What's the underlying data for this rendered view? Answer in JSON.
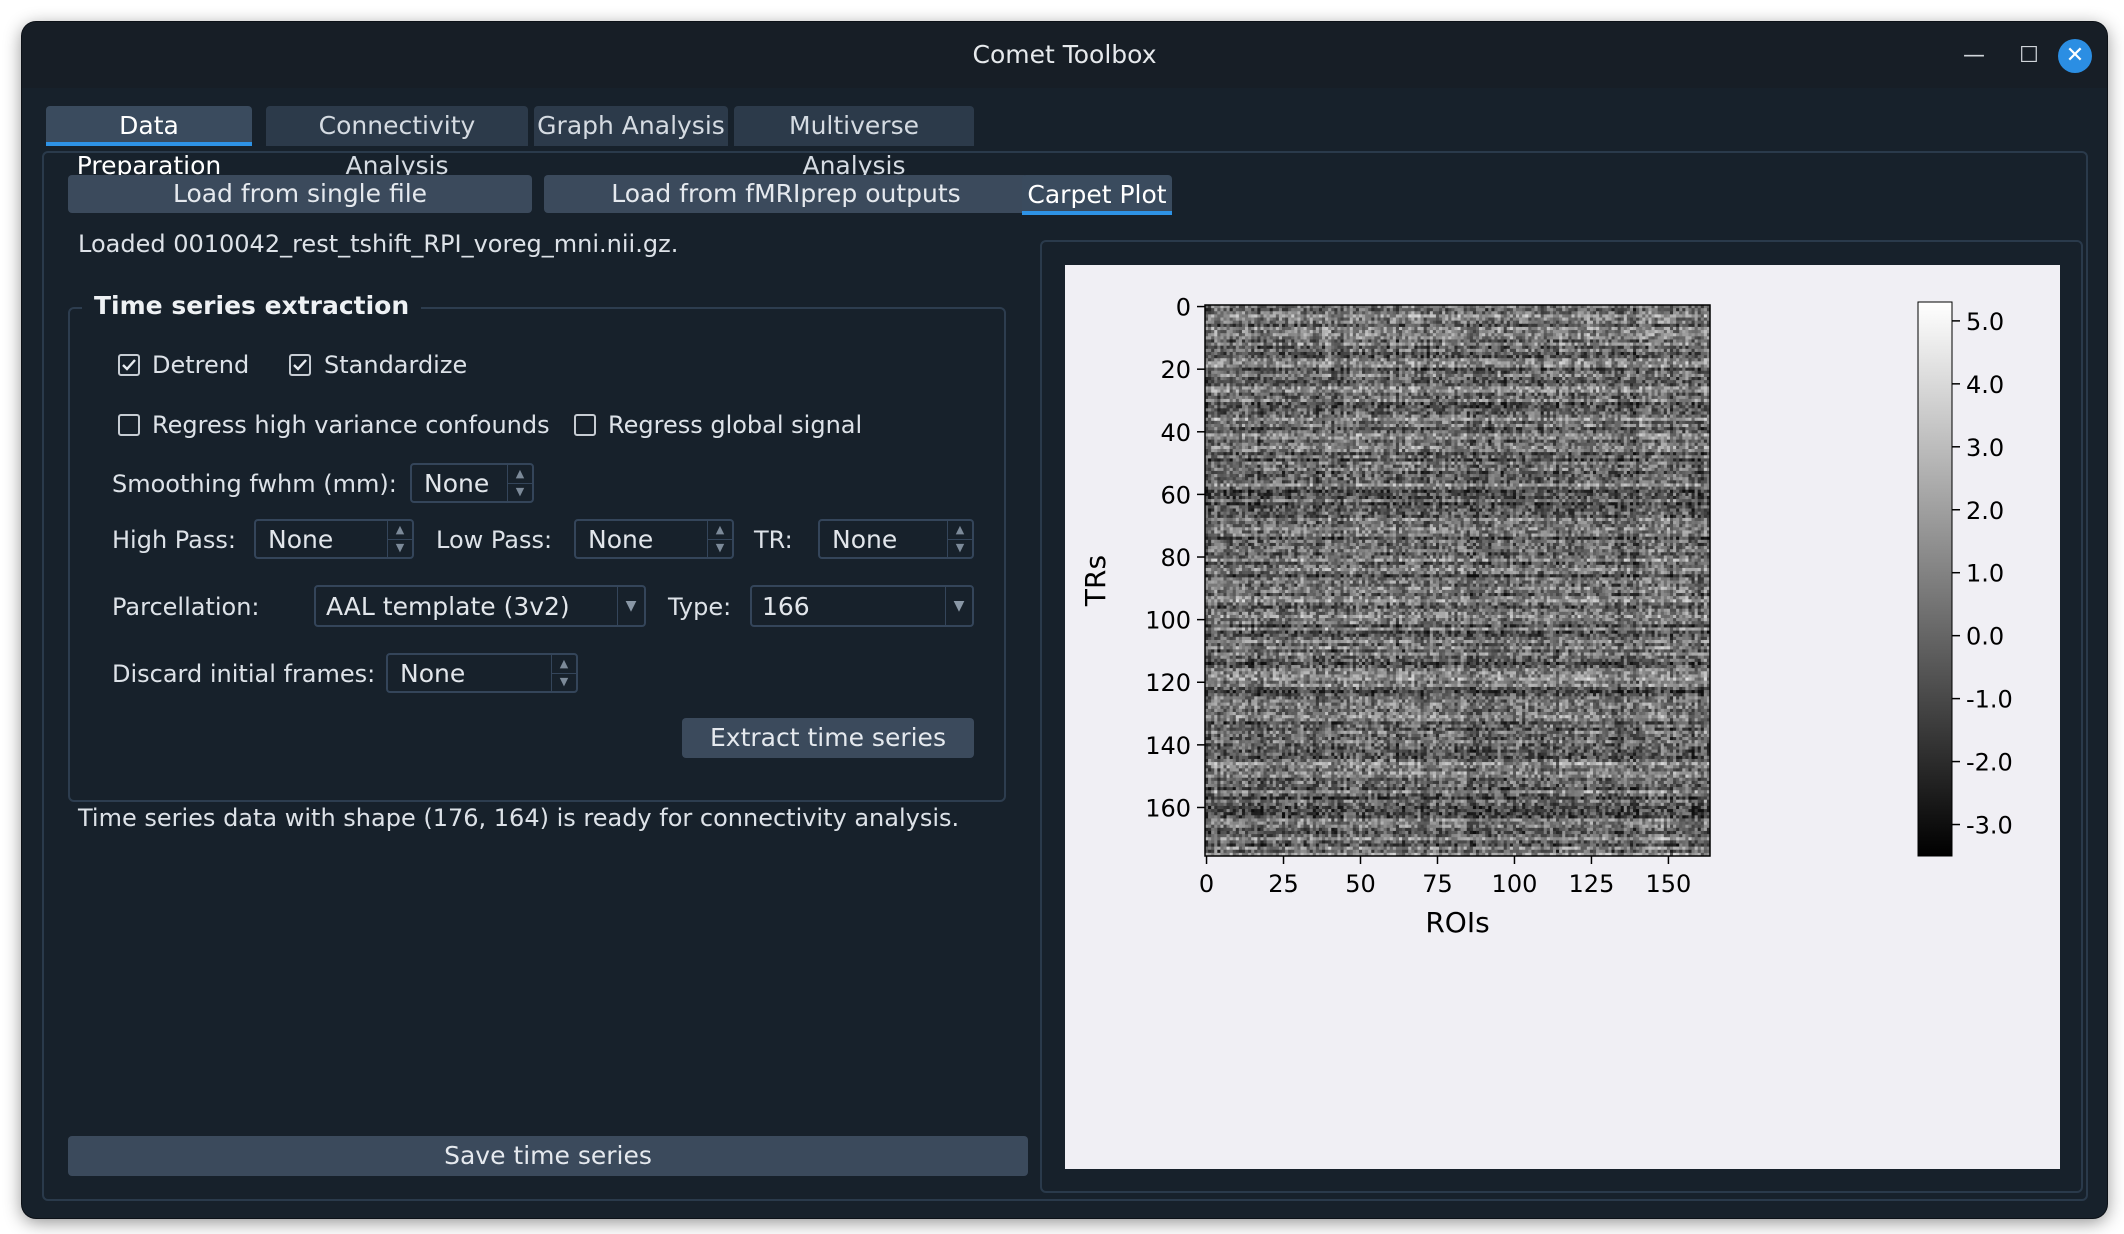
{
  "window": {
    "title": "Comet Toolbox",
    "controls": {
      "minimize": "—",
      "maximize": "☐",
      "close": "✕"
    }
  },
  "tabs": [
    {
      "label": "Data Preparation",
      "active": true
    },
    {
      "label": "Connectivity Analysis",
      "active": false
    },
    {
      "label": "Graph Analysis",
      "active": false
    },
    {
      "label": "Multiverse Analysis",
      "active": false
    }
  ],
  "data_prep": {
    "load_single_label": "Load from single file",
    "load_fmriprep_label": "Load from fMRIprep outputs",
    "loaded_file_text": "Loaded 0010042_rest_tshift_RPI_voreg_mni.nii.gz.",
    "group_title": "Time series extraction",
    "detrend": {
      "label": "Detrend",
      "checked": true
    },
    "standardize": {
      "label": "Standardize",
      "checked": true
    },
    "regress_confounds": {
      "label": "Regress high variance confounds",
      "checked": false
    },
    "regress_global": {
      "label": "Regress global signal",
      "checked": false
    },
    "smoothing": {
      "label": "Smoothing fwhm (mm):",
      "value": "None"
    },
    "high_pass": {
      "label": "High Pass:",
      "value": "None"
    },
    "low_pass": {
      "label": "Low Pass:",
      "value": "None"
    },
    "tr": {
      "label": "TR:",
      "value": "None"
    },
    "parcellation": {
      "label": "Parcellation:",
      "value": "AAL template (3v2)"
    },
    "type": {
      "label": "Type:",
      "value": "166"
    },
    "discard": {
      "label": "Discard initial frames:",
      "value": "None"
    },
    "extract_label": "Extract time series",
    "status_text": "Time series data with shape (176, 164) is ready for connectivity analysis.",
    "save_label": "Save time series"
  },
  "plot_tabs": [
    {
      "label": "Carpet Plot",
      "active": true
    }
  ],
  "chart_data": {
    "type": "heatmap",
    "xlabel": "ROIs",
    "ylabel": "TRs",
    "x_ticks": [
      0,
      25,
      50,
      75,
      100,
      125,
      150
    ],
    "y_ticks": [
      0,
      20,
      40,
      60,
      80,
      100,
      120,
      140,
      160
    ],
    "n_rois": 164,
    "n_trs": 176,
    "colormap": "gray",
    "colorbar_ticks": [
      "5.0",
      "4.0",
      "3.0",
      "2.0",
      "1.0",
      "0.0",
      "-1.0",
      "-2.0",
      "-3.0"
    ],
    "value_range": [
      -3.5,
      5.3
    ]
  },
  "colors": {
    "accent": "#2e93e6",
    "window_bg": "#17212b",
    "button_bg": "#3b4a5c"
  }
}
